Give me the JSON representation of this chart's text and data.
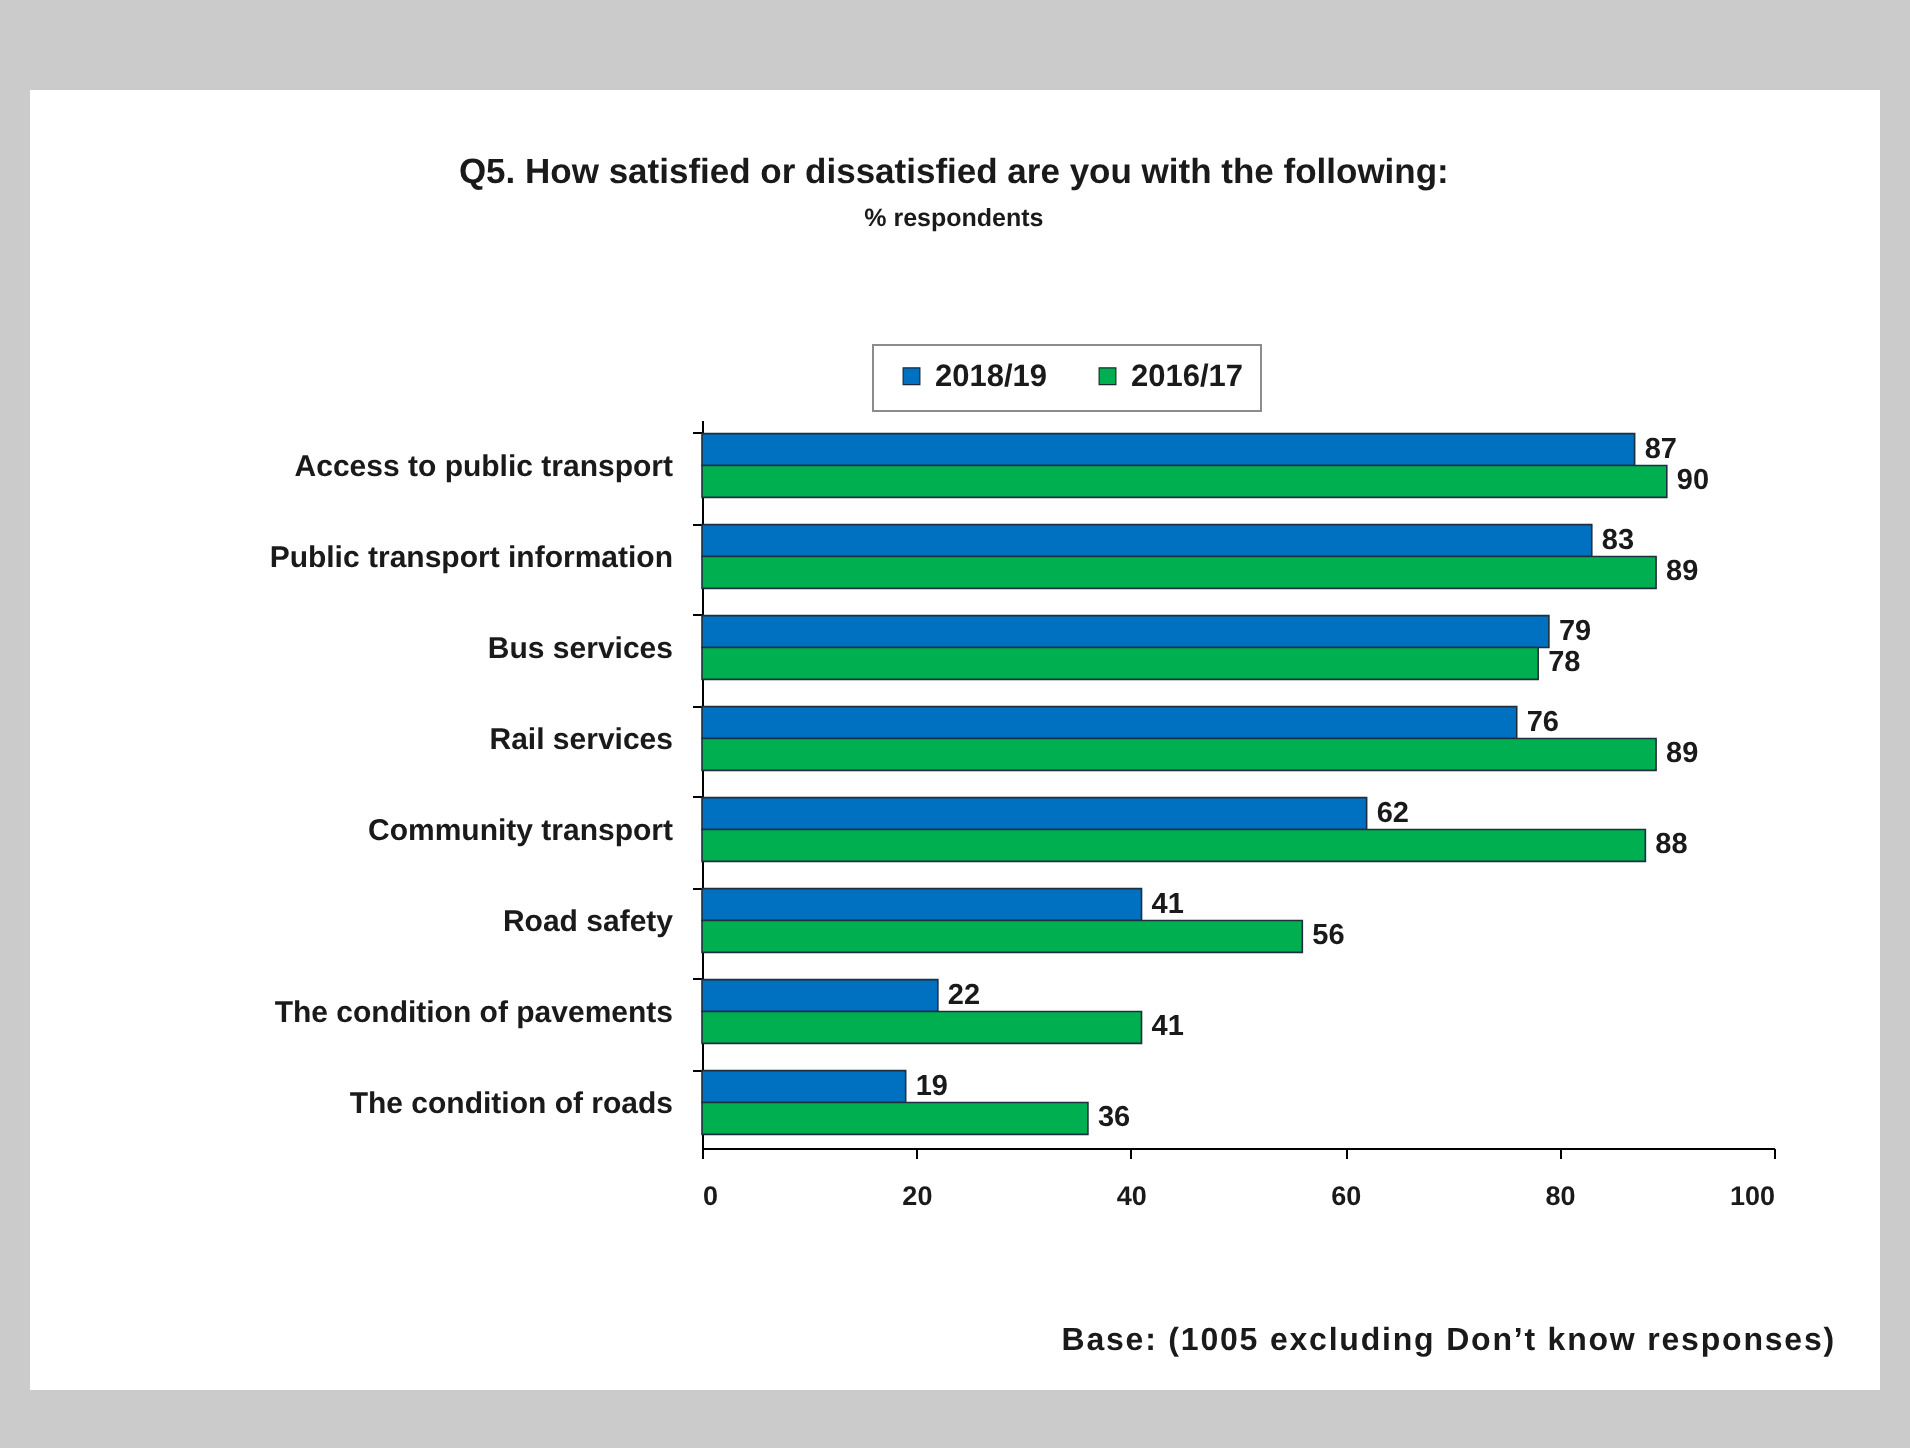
{
  "chart_data": {
    "type": "bar",
    "orientation": "horizontal",
    "title": "Q5. How satisfied or dissatisfied are you with the following:",
    "subtitle": "% respondents",
    "categories": [
      "Access to public transport",
      "Public transport information",
      "Bus services",
      "Rail services",
      "Community transport",
      "Road safety",
      "The condition of pavements",
      "The condition of roads"
    ],
    "series": [
      {
        "name": "2018/19",
        "color": "#0070c0",
        "values": [
          87,
          83,
          79,
          76,
          62,
          41,
          22,
          19
        ]
      },
      {
        "name": "2016/17",
        "color": "#00b050",
        "values": [
          90,
          89,
          78,
          89,
          88,
          56,
          41,
          36
        ]
      }
    ],
    "xlim": [
      0,
      100
    ],
    "xticks": [
      0,
      20,
      40,
      60,
      80,
      100
    ],
    "data_labels": true,
    "legend": "top",
    "annotations": [
      "Base: (1005 excluding Don’t know responses)"
    ]
  }
}
